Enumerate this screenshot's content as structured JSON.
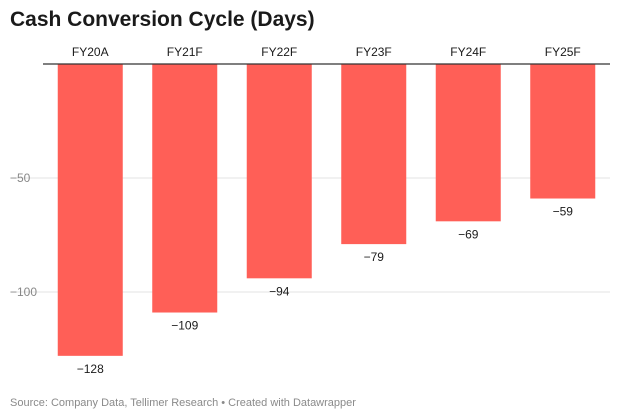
{
  "chart_data": {
    "type": "bar",
    "title": "Cash Conversion Cycle (Days)",
    "categories": [
      "FY20A",
      "FY21F",
      "FY22F",
      "FY23F",
      "FY24F",
      "FY25F"
    ],
    "values": [
      -128,
      -109,
      -94,
      -79,
      -69,
      -59
    ],
    "value_labels": [
      "−128",
      "−109",
      "−94",
      "−79",
      "−69",
      "−59"
    ],
    "yticks": [
      0,
      -50,
      -100
    ],
    "ytick_labels": [
      "",
      "−50",
      "−100"
    ],
    "ylim": [
      -130,
      0
    ],
    "xlabel": "",
    "ylabel": "",
    "grid": true,
    "bar_color": "#ff5f57",
    "axis_color": "#333333",
    "grid_color": "#e3e3e3",
    "label_color": "#1a1a1a",
    "tick_color": "#888888"
  },
  "footer": {
    "source": "Source: Company Data, Tellimer Research",
    "separator": "•",
    "credit": "Created with Datawrapper"
  }
}
